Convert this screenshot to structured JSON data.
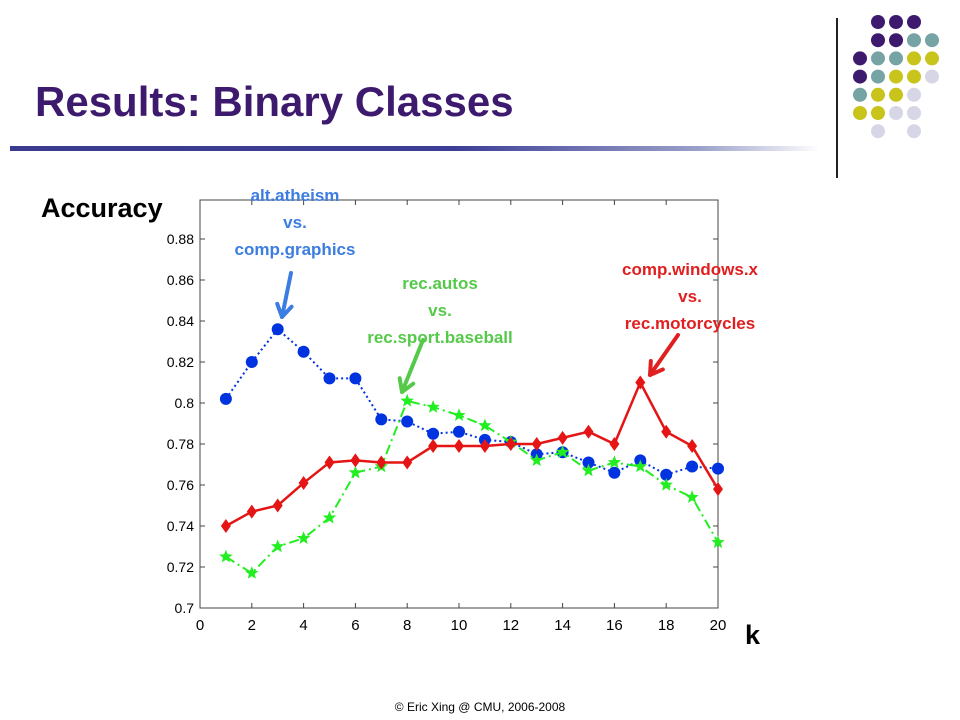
{
  "slide": {
    "title": "Results: Binary Classes",
    "ylabel": "Accuracy",
    "xlabel": "k",
    "footer": "© Eric Xing @ CMU, 2006-2008"
  },
  "annotations": [
    {
      "lines": [
        "alt.atheism",
        "vs.",
        "comp.graphics"
      ],
      "color": "#3b7de0"
    },
    {
      "lines": [
        "rec.autos",
        "vs.",
        "rec.sport.baseball"
      ],
      "color": "#56c94a"
    },
    {
      "lines": [
        "comp.windows.x",
        "vs.",
        "rec.motorcycles"
      ],
      "color": "#e02020"
    }
  ],
  "decor_colors": [
    "#3d1a6e",
    "#76a3a3",
    "#c8c41c",
    "#d6d6e6"
  ],
  "chart_data": {
    "type": "line",
    "title": "",
    "xlabel": "k",
    "ylabel": "Accuracy",
    "xlim": [
      0,
      20
    ],
    "ylim": [
      0.7,
      0.89
    ],
    "xticks": [
      "0",
      "2",
      "4",
      "6",
      "8",
      "10",
      "12",
      "14",
      "16",
      "18",
      "20"
    ],
    "yticks": [
      "0.7",
      "0.72",
      "0.74",
      "0.76",
      "0.78",
      "0.8",
      "0.82",
      "0.84",
      "0.86",
      "0.88"
    ],
    "x": [
      1,
      2,
      3,
      4,
      5,
      6,
      7,
      8,
      9,
      10,
      11,
      12,
      13,
      14,
      15,
      16,
      17,
      18,
      19,
      20
    ],
    "series": [
      {
        "color": "#0033e0",
        "marker": "circle",
        "style": "dotted",
        "values": [
          0.802,
          0.82,
          0.836,
          0.825,
          0.812,
          0.812,
          0.792,
          0.791,
          0.785,
          0.786,
          0.782,
          0.781,
          0.775,
          0.776,
          0.771,
          0.766,
          0.772,
          0.765,
          0.769,
          0.768
        ]
      },
      {
        "color": "#22ee22",
        "marker": "star",
        "style": "dashdot",
        "values": [
          0.725,
          0.717,
          0.73,
          0.734,
          0.744,
          0.766,
          0.769,
          0.801,
          0.798,
          0.794,
          0.789,
          0.781,
          0.772,
          0.776,
          0.767,
          0.771,
          0.769,
          0.76,
          0.754,
          0.732
        ]
      },
      {
        "color": "#e51515",
        "marker": "diamond",
        "style": "solid",
        "values": [
          0.74,
          0.747,
          0.75,
          0.761,
          0.771,
          0.772,
          0.771,
          0.771,
          0.779,
          0.779,
          0.779,
          0.78,
          0.78,
          0.783,
          0.786,
          0.78,
          0.81,
          0.786,
          0.779,
          0.758
        ]
      }
    ]
  }
}
